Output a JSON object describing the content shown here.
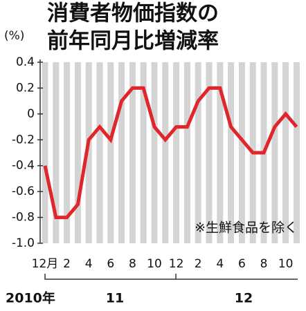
{
  "chart_data": {
    "type": "line",
    "title": [
      "消費者物価指数の",
      "前年同月比増減率"
    ],
    "y_unit": "(%)",
    "note": "※生鮮食品を除く",
    "categories": [
      "12月",
      null,
      "2",
      null,
      "4",
      null,
      "6",
      null,
      "8",
      null,
      "10",
      null,
      "12",
      null,
      "2",
      null,
      "4",
      null,
      "6",
      null,
      "8",
      null,
      "10",
      null
    ],
    "year_labels": [
      "2010年",
      "11",
      "12"
    ],
    "values": [
      -0.4,
      -0.8,
      -0.8,
      -0.7,
      -0.2,
      -0.1,
      -0.2,
      0.1,
      0.2,
      0.2,
      -0.1,
      -0.2,
      -0.1,
      -0.1,
      0.1,
      0.2,
      0.2,
      -0.1,
      -0.2,
      -0.3,
      -0.3,
      -0.1,
      0,
      -0.1
    ],
    "color": "#e0262a",
    "ylim": [
      -1,
      0.4
    ],
    "yticks": [
      0.4,
      0.2,
      0,
      -0.2,
      -0.4,
      -0.6,
      -0.8,
      {
        "value": -1,
        "label": "-1.0"
      }
    ],
    "grid": true
  }
}
